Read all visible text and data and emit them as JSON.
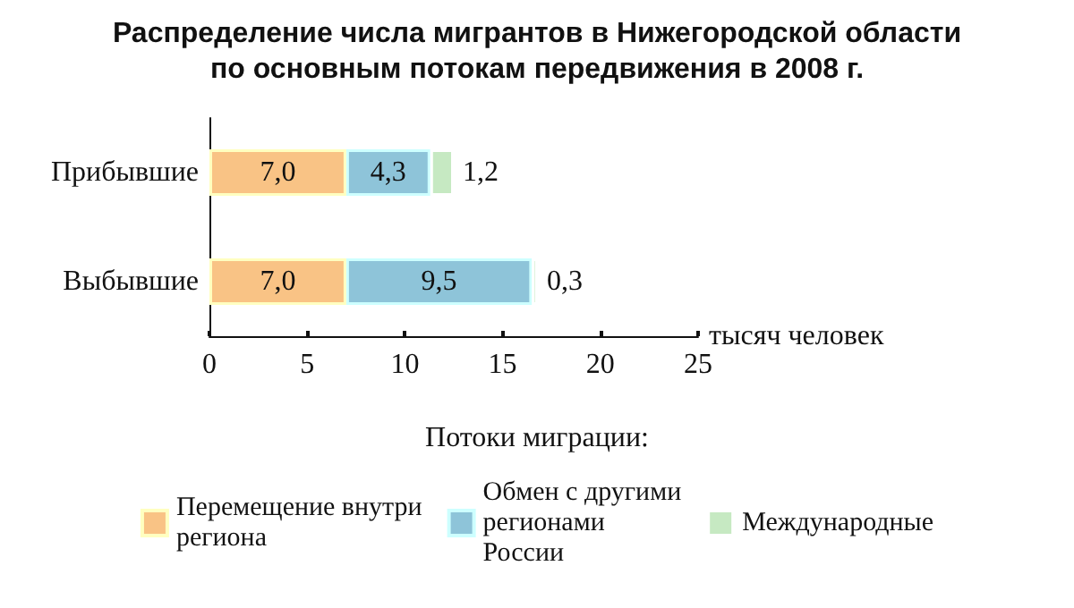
{
  "chart_data": {
    "type": "bar",
    "title": "Распределение числа мигрантов в Нижегородской области\nпо основным потокам передвижения в 2008 г.",
    "orientation": "horizontal",
    "stacked": true,
    "categories": [
      "Прибывшие",
      "Выбывшие"
    ],
    "series": [
      {
        "name": "Перемещение внутри\nрегиона",
        "color": "#f9c385",
        "values": [
          7.0,
          7.0
        ],
        "value_labels": [
          "7,0",
          "7,0"
        ]
      },
      {
        "name": "Обмен с другими\nрегионами\nРоссии",
        "color": "#8ec4d9",
        "values": [
          4.3,
          9.5
        ],
        "value_labels": [
          "4,3",
          "9,5"
        ]
      },
      {
        "name": "Международные",
        "color": "#c6e9c2",
        "values": [
          1.2,
          0.3
        ],
        "value_labels": [
          "1,2",
          "0,3"
        ]
      }
    ],
    "xlabel": "тысяч человек",
    "xlim": [
      0,
      25
    ],
    "xticks": [
      0,
      5,
      10,
      15,
      20,
      25
    ],
    "grid": false,
    "legend": "bottom",
    "legend_title": "Потоки миграции:"
  }
}
